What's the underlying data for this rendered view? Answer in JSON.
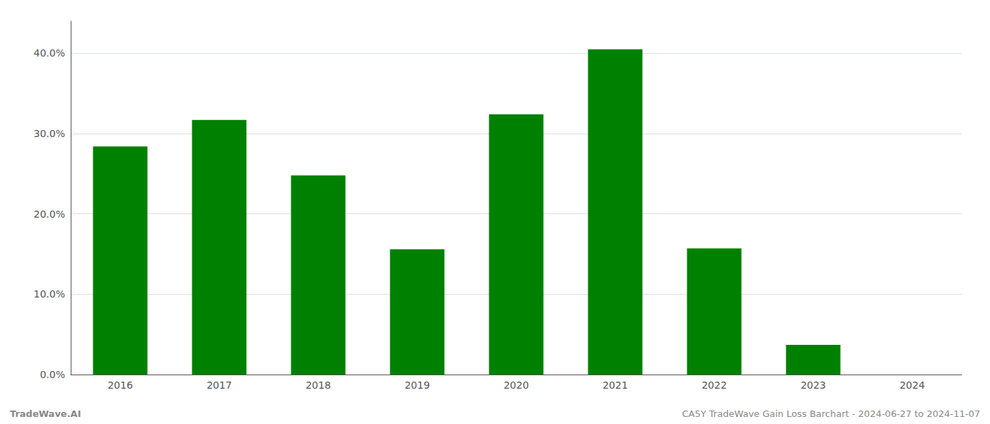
{
  "chart_data": {
    "type": "bar",
    "categories": [
      "2016",
      "2017",
      "2018",
      "2019",
      "2020",
      "2021",
      "2022",
      "2023",
      "2024"
    ],
    "values": [
      0.284,
      0.317,
      0.248,
      0.156,
      0.324,
      0.405,
      0.157,
      0.037,
      0.0
    ],
    "color": "#008000",
    "ylim": [
      0.0,
      0.44
    ],
    "yticks": [
      {
        "value": 0.0,
        "label": "0.0%"
      },
      {
        "value": 0.1,
        "label": "10.0%"
      },
      {
        "value": 0.2,
        "label": "20.0%"
      },
      {
        "value": 0.3,
        "label": "30.0%"
      },
      {
        "value": 0.4,
        "label": "40.0%"
      }
    ],
    "grid": true,
    "annotations": [
      "TradeWave.AI",
      "CA5Y TradeWave Gain Loss Barchart - 2024-06-27 to 2024-11-07"
    ]
  }
}
